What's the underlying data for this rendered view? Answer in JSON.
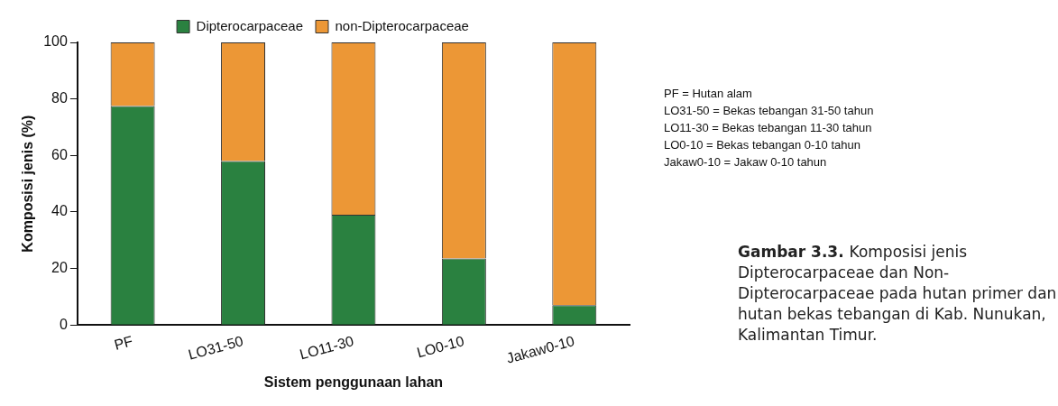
{
  "chart_data": {
    "type": "bar",
    "stacked": true,
    "xlabel": "Sistem penggunaan lahan",
    "ylabel": "Komposisi jenis (%)",
    "categories": [
      "PF",
      "LO31-50",
      "LO11-30",
      "LO0-10",
      "Jakaw0-10"
    ],
    "series": [
      {
        "name": "Dipterocarpaceae",
        "color": "#2a8140",
        "values": [
          77.5,
          58,
          39,
          23.5,
          7
        ]
      },
      {
        "name": "non-Dipterocarpaceae",
        "color": "#ec9736",
        "values": [
          22.5,
          42,
          61,
          76.5,
          93
        ]
      }
    ],
    "ylim": [
      0,
      100
    ],
    "yticks": [
      0,
      20,
      40,
      60,
      80,
      100
    ],
    "grid": false,
    "legend": "top",
    "annotations": [
      "PF = Hutan alam",
      "LO31-50 = Bekas tebangan 31-50 tahun",
      "LO11-30 = Bekas tebangan 11-30 tahun",
      "LO0-10 = Bekas tebangan 0-10 tahun",
      "Jakaw0-10 = Jakaw 0-10 tahun",
      "Gambar 3.3.",
      "Komposisi jenis Dipterocarpaceae dan Non-Dipterocarpaceae pada hutan primer dan hutan bekas tebangan di Kab. Nunukan, Kalimantan Timur."
    ]
  }
}
